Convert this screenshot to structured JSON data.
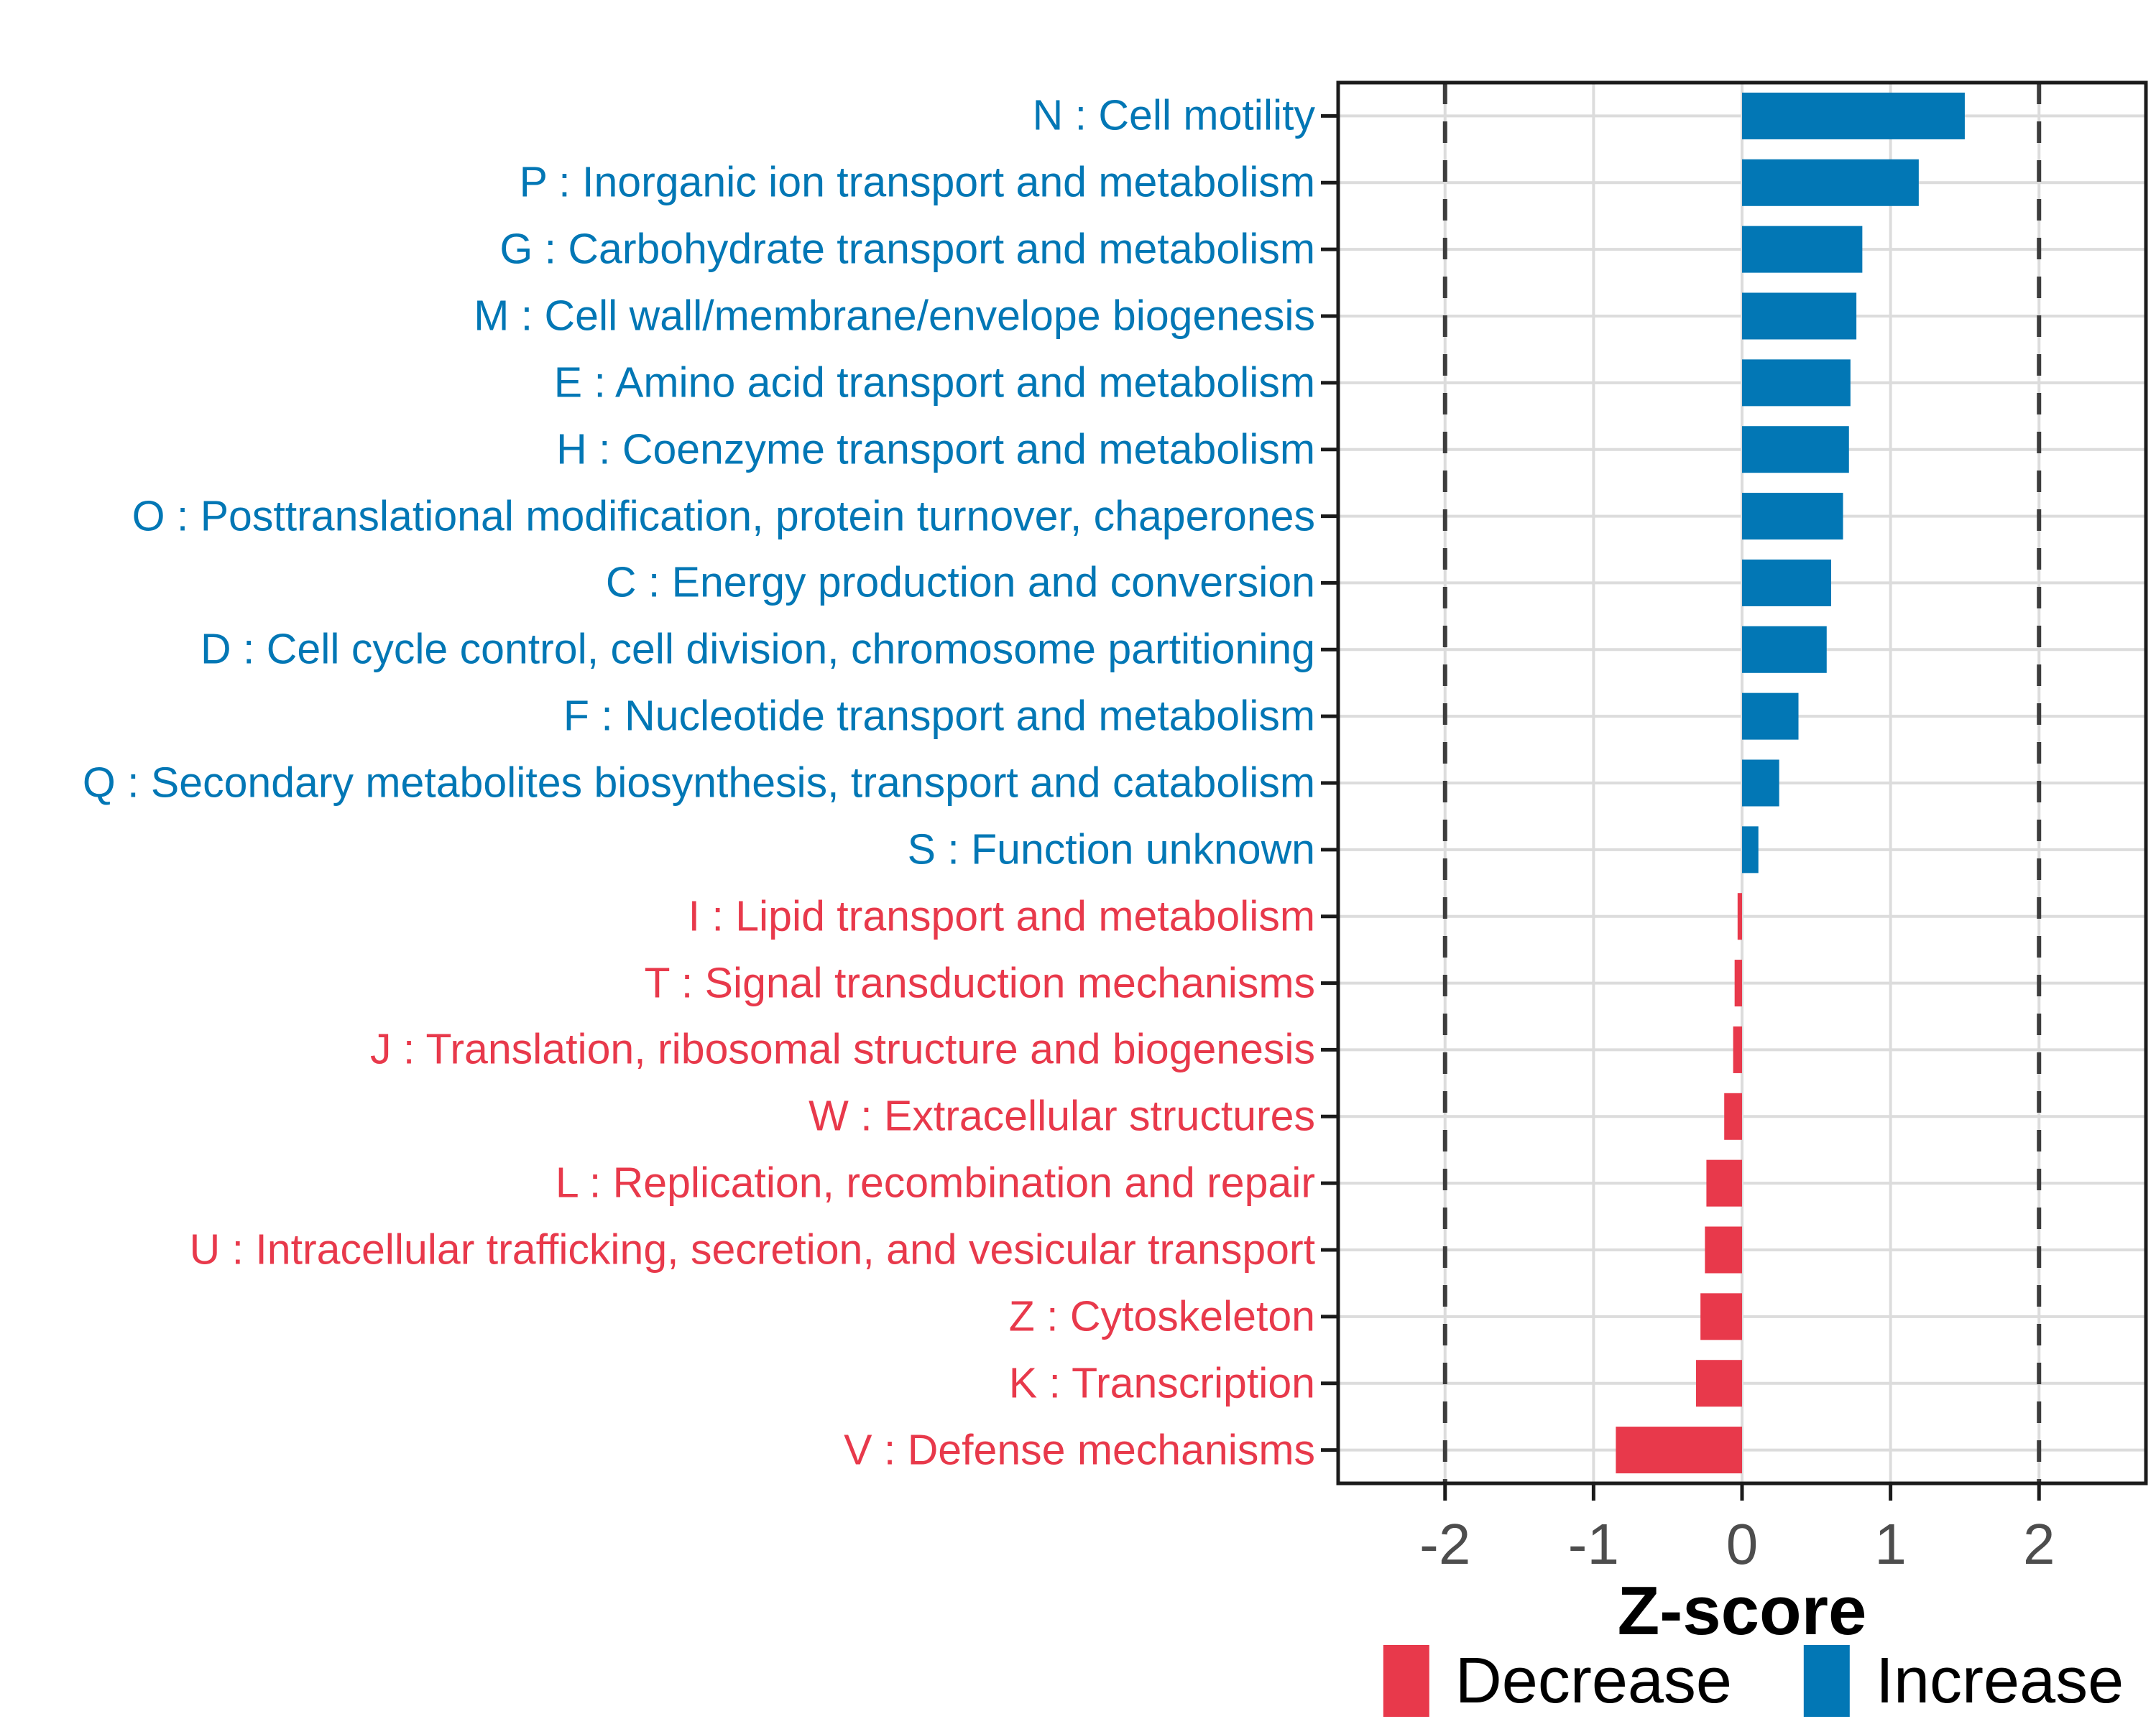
{
  "chart_data": {
    "type": "bar",
    "orientation": "horizontal",
    "title": "",
    "xlabel": "Z-score",
    "ylabel": "",
    "xlim": [
      -2.72,
      2.72
    ],
    "xticks": [
      -2,
      -1,
      0,
      1,
      2
    ],
    "xtick_labels": [
      "-2",
      "-1",
      "0",
      "1",
      "2"
    ],
    "dashed_guides_x": [
      -2,
      2
    ],
    "grid": true,
    "legend_position": "bottom-right",
    "categories": [
      "N : Cell motility",
      "P : Inorganic ion transport and metabolism",
      "G : Carbohydrate transport and metabolism",
      "M : Cell wall/membrane/envelope biogenesis",
      "E : Amino acid transport and metabolism",
      "H : Coenzyme transport and metabolism",
      "O : Posttranslational modification, protein turnover, chaperones",
      "C : Energy production and conversion",
      "D : Cell cycle control, cell division, chromosome partitioning",
      "F : Nucleotide transport and metabolism",
      "Q : Secondary metabolites biosynthesis, transport and catabolism",
      "S : Function unknown",
      "I : Lipid transport and metabolism",
      "T : Signal transduction mechanisms",
      "J : Translation, ribosomal structure and biogenesis",
      "W : Extracellular structures",
      "L : Replication, recombination and repair",
      "U : Intracellular trafficking, secretion, and vesicular transport",
      "Z : Cytoskeleton",
      "K : Transcription",
      "V : Defense mechanisms"
    ],
    "values": [
      1.5,
      1.19,
      0.81,
      0.77,
      0.73,
      0.72,
      0.68,
      0.6,
      0.57,
      0.38,
      0.25,
      0.11,
      -0.03,
      -0.05,
      -0.06,
      -0.12,
      -0.24,
      -0.25,
      -0.28,
      -0.31,
      -0.85
    ],
    "directions": [
      "increase",
      "increase",
      "increase",
      "increase",
      "increase",
      "increase",
      "increase",
      "increase",
      "increase",
      "increase",
      "increase",
      "increase",
      "decrease",
      "decrease",
      "decrease",
      "decrease",
      "decrease",
      "decrease",
      "decrease",
      "decrease",
      "decrease"
    ],
    "colors": {
      "increase": "#0277B5",
      "decrease": "#E8394B",
      "gridline": "#DCDCDC",
      "dashed_guide": "#3D3D3D",
      "panel_border": "#1B1B1B",
      "tick_mark": "#1B1B1B",
      "tick_label": "#4D4D4D"
    },
    "legend": [
      {
        "label": "Decrease",
        "color": "#E8394B"
      },
      {
        "label": "Increase",
        "color": "#0277B5"
      }
    ]
  }
}
